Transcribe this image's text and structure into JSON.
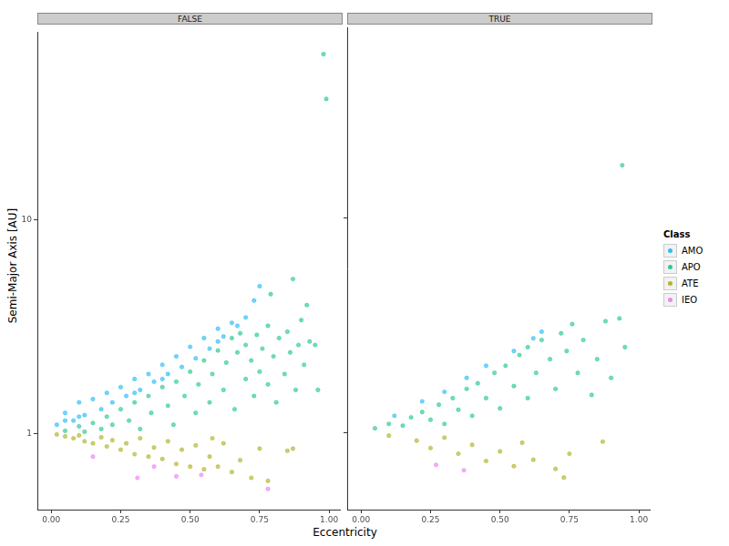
{
  "chart_data": {
    "type": "scatter",
    "x_label": "Eccentricity",
    "y_label": "Semi-Major Axis [AU]",
    "legend_title": "Class",
    "legend": "right",
    "log": "y",
    "grid": false,
    "xlim": [
      -0.05,
      1.04
    ],
    "ylim": [
      0.44,
      76
    ],
    "xticks": [
      {
        "value": 0,
        "label": "0.00"
      },
      {
        "value": 0.25,
        "label": "0.25"
      },
      {
        "value": 0.5,
        "label": "0.50"
      },
      {
        "value": 0.75,
        "label": "0.75"
      },
      {
        "value": 1,
        "label": "1.00"
      }
    ],
    "yticks": [
      1,
      10
    ],
    "series": [
      {
        "name": "AMO",
        "color": "#00B0F6"
      },
      {
        "name": "APO",
        "color": "#00BF7D"
      },
      {
        "name": "ATE",
        "color": "#A3A500"
      },
      {
        "name": "IEO",
        "color": "#E76BF3"
      }
    ],
    "facets": [
      {
        "title": "FALSE",
        "series": [
          {
            "name": "AMO",
            "x": [
              0.02,
              0.05,
              0.05,
              0.08,
              0.1,
              0.1,
              0.12,
              0.15,
              0.18,
              0.2,
              0.22,
              0.25,
              0.27,
              0.3,
              0.3,
              0.32,
              0.35,
              0.37,
              0.4,
              0.4,
              0.42,
              0.45,
              0.47,
              0.5,
              0.52,
              0.55,
              0.57,
              0.6,
              0.6,
              0.62,
              0.65,
              0.67,
              0.7,
              0.73,
              0.75
            ],
            "y": [
              1.1,
              1.25,
              1.15,
              1.15,
              1.4,
              1.2,
              1.22,
              1.45,
              1.3,
              1.55,
              1.4,
              1.65,
              1.5,
              1.8,
              1.55,
              1.6,
              1.9,
              1.75,
              2.1,
              1.8,
              1.9,
              2.3,
              2.05,
              2.55,
              2.25,
              2.8,
              2.5,
              3.1,
              2.7,
              2.85,
              3.3,
              3.2,
              3.5,
              4.2,
              4.9
            ]
          },
          {
            "name": "APO",
            "x": [
              0.05,
              0.1,
              0.12,
              0.15,
              0.18,
              0.2,
              0.22,
              0.25,
              0.28,
              0.3,
              0.32,
              0.35,
              0.36,
              0.4,
              0.42,
              0.44,
              0.45,
              0.48,
              0.5,
              0.52,
              0.53,
              0.55,
              0.57,
              0.58,
              0.6,
              0.62,
              0.63,
              0.65,
              0.66,
              0.67,
              0.68,
              0.7,
              0.7,
              0.72,
              0.73,
              0.74,
              0.75,
              0.76,
              0.78,
              0.78,
              0.79,
              0.8,
              0.81,
              0.82,
              0.84,
              0.85,
              0.86,
              0.87,
              0.88,
              0.89,
              0.9,
              0.91,
              0.92,
              0.93,
              0.95,
              0.96,
              0.98,
              0.99
            ],
            "y": [
              1.03,
              1.08,
              1.02,
              1.12,
              1.05,
              1.2,
              1.1,
              1.3,
              1.15,
              1.4,
              1.05,
              1.5,
              1.25,
              1.65,
              1.35,
              1.1,
              1.75,
              1.5,
              1.95,
              1.25,
              1.7,
              2.2,
              1.4,
              1.9,
              2.45,
              1.6,
              2.15,
              2.8,
              1.3,
              2.4,
              2.95,
              1.8,
              2.6,
              2.2,
              1.5,
              2.9,
              1.95,
              2.5,
              1.7,
              3.2,
              4.5,
              2.3,
              1.4,
              2.8,
              1.9,
              3.0,
              2.4,
              5.3,
              1.6,
              2.6,
              3.4,
              2.1,
              4.0,
              2.7,
              2.6,
              1.6,
              60,
              37
            ]
          },
          {
            "name": "ATE",
            "x": [
              0.02,
              0.05,
              0.08,
              0.1,
              0.12,
              0.15,
              0.18,
              0.2,
              0.22,
              0.25,
              0.27,
              0.3,
              0.32,
              0.35,
              0.37,
              0.4,
              0.42,
              0.45,
              0.47,
              0.5,
              0.52,
              0.55,
              0.57,
              0.58,
              0.6,
              0.62,
              0.65,
              0.68,
              0.72,
              0.75,
              0.78,
              0.85,
              0.87
            ],
            "y": [
              0.99,
              0.97,
              0.95,
              0.98,
              0.92,
              0.9,
              0.96,
              0.87,
              0.93,
              0.84,
              0.9,
              0.8,
              0.95,
              0.78,
              0.86,
              0.76,
              0.92,
              0.72,
              0.84,
              0.7,
              0.88,
              0.68,
              0.78,
              0.95,
              0.7,
              0.9,
              0.66,
              0.75,
              0.62,
              0.85,
              0.6,
              0.83,
              0.85
            ]
          },
          {
            "name": "IEO",
            "x": [
              0.15,
              0.31,
              0.37,
              0.45,
              0.54,
              0.78
            ],
            "y": [
              0.78,
              0.62,
              0.7,
              0.63,
              0.64,
              0.55
            ]
          }
        ]
      },
      {
        "title": "TRUE",
        "series": [
          {
            "name": "AMO",
            "x": [
              0.12,
              0.22,
              0.3,
              0.38,
              0.45,
              0.55,
              0.62,
              0.65
            ],
            "y": [
              1.2,
              1.4,
              1.55,
              1.8,
              2.05,
              2.4,
              2.75,
              2.95
            ]
          },
          {
            "name": "APO",
            "x": [
              0.05,
              0.1,
              0.15,
              0.18,
              0.22,
              0.25,
              0.28,
              0.3,
              0.33,
              0.35,
              0.38,
              0.4,
              0.42,
              0.45,
              0.48,
              0.5,
              0.52,
              0.55,
              0.57,
              0.6,
              0.6,
              0.63,
              0.65,
              0.68,
              0.7,
              0.72,
              0.74,
              0.76,
              0.78,
              0.8,
              0.83,
              0.85,
              0.88,
              0.9,
              0.93,
              0.95,
              0.94
            ],
            "y": [
              1.05,
              1.1,
              1.08,
              1.18,
              1.25,
              1.15,
              1.35,
              1.1,
              1.45,
              1.28,
              1.6,
              1.2,
              1.7,
              1.45,
              1.9,
              1.3,
              2.05,
              1.65,
              2.3,
              1.45,
              2.5,
              1.9,
              2.7,
              2.2,
              1.6,
              2.9,
              2.4,
              3.2,
              1.9,
              2.7,
              1.5,
              2.2,
              3.3,
              1.8,
              3.4,
              2.5,
              17.5
            ]
          },
          {
            "name": "ATE",
            "x": [
              0.1,
              0.2,
              0.25,
              0.3,
              0.35,
              0.4,
              0.45,
              0.5,
              0.55,
              0.58,
              0.62,
              0.7,
              0.73,
              0.75,
              0.87
            ],
            "y": [
              0.97,
              0.92,
              0.85,
              0.95,
              0.8,
              0.88,
              0.74,
              0.82,
              0.7,
              0.9,
              0.75,
              0.68,
              0.62,
              0.8,
              0.91
            ]
          },
          {
            "name": "IEO",
            "x": [
              0.27,
              0.37
            ],
            "y": [
              0.71,
              0.67
            ]
          }
        ]
      }
    ]
  }
}
